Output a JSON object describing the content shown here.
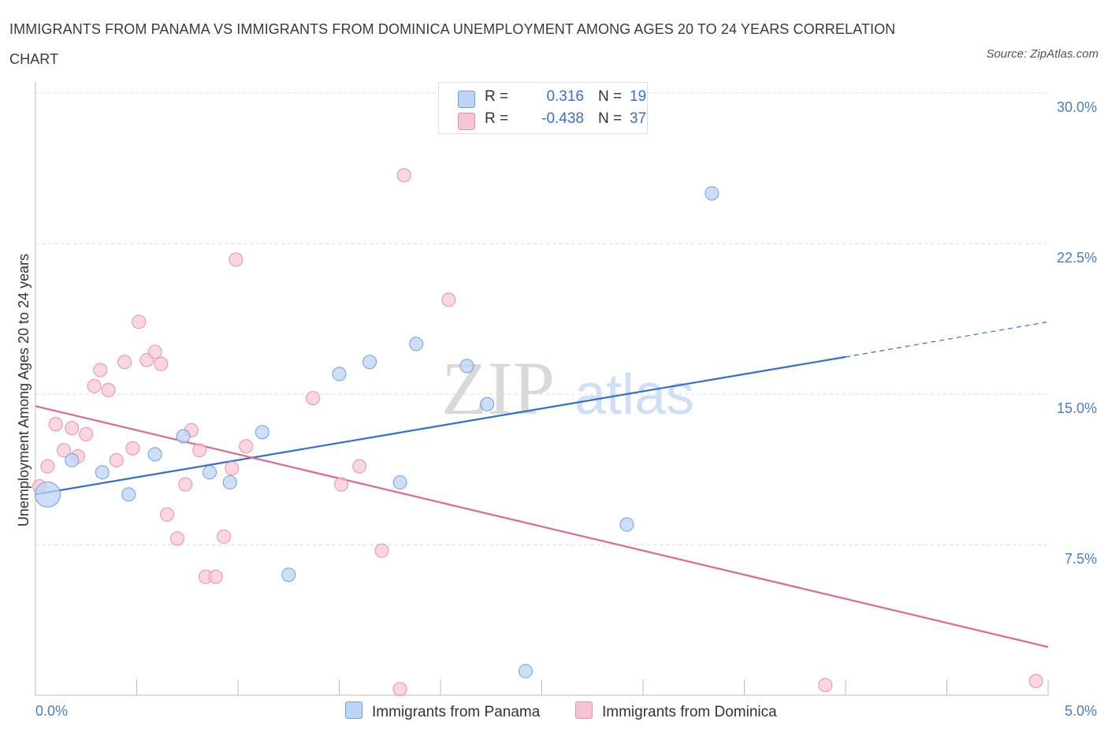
{
  "title": "IMMIGRANTS FROM PANAMA VS IMMIGRANTS FROM DOMINICA UNEMPLOYMENT AMONG AGES 20 TO 24 YEARS CORRELATION CHART",
  "source": "Source: ZipAtlas.com",
  "watermark": {
    "zip": "ZIP",
    "atlas": "atlas"
  },
  "colors": {
    "panama_fill": "#bcd4f5",
    "panama_stroke": "#6f9fd8",
    "panama_line": "#2f6fce",
    "dominica_fill": "#f8c4d3",
    "dominica_stroke": "#e890aa",
    "dominica_line": "#e0688e",
    "tick_label": "#4a7cc4",
    "grid": "#d8d8d8"
  },
  "legend": {
    "rows": [
      {
        "r_label": "R =",
        "r_value": "0.316",
        "n_label": "N =",
        "n_value": "19"
      },
      {
        "r_label": "R =",
        "r_value": "-0.438",
        "n_label": "N =",
        "n_value": "37"
      }
    ]
  },
  "bottom_legend": [
    {
      "label": "Immigrants from Panama"
    },
    {
      "label": "Immigrants from Dominica"
    }
  ],
  "chart_data": {
    "type": "scatter",
    "title": "IMMIGRANTS FROM PANAMA VS IMMIGRANTS FROM DOMINICA UNEMPLOYMENT AMONG AGES 20 TO 24 YEARS CORRELATION CHART",
    "xlabel": "",
    "ylabel": "Unemployment Among Ages 20 to 24 years",
    "xlim": [
      0,
      5
    ],
    "ylim": [
      0,
      30
    ],
    "x_tick_labels": [
      "0.0%",
      "5.0%"
    ],
    "y_ticks": [
      7.5,
      15.0,
      22.5,
      30.0
    ],
    "y_tick_labels": [
      "7.5%",
      "15.0%",
      "22.5%",
      "30.0%"
    ],
    "grid": true,
    "legend_position": "top-center",
    "series": [
      {
        "name": "Immigrants from Panama",
        "points": [
          {
            "x": 0.06,
            "y": 10.0,
            "size": "large"
          },
          {
            "x": 0.18,
            "y": 11.7
          },
          {
            "x": 0.33,
            "y": 11.1
          },
          {
            "x": 0.46,
            "y": 10.0
          },
          {
            "x": 0.59,
            "y": 12.0
          },
          {
            "x": 0.73,
            "y": 12.9
          },
          {
            "x": 0.86,
            "y": 11.1
          },
          {
            "x": 0.96,
            "y": 10.6
          },
          {
            "x": 1.12,
            "y": 13.1
          },
          {
            "x": 1.25,
            "y": 6.0
          },
          {
            "x": 1.5,
            "y": 16.0
          },
          {
            "x": 1.65,
            "y": 16.6
          },
          {
            "x": 1.88,
            "y": 17.5
          },
          {
            "x": 2.13,
            "y": 16.4
          },
          {
            "x": 2.23,
            "y": 14.5
          },
          {
            "x": 1.8,
            "y": 10.6
          },
          {
            "x": 2.42,
            "y": 1.2
          },
          {
            "x": 2.92,
            "y": 8.5
          },
          {
            "x": 3.34,
            "y": 25.0
          }
        ],
        "trend": {
          "x_start": 0.0,
          "y_start": 10.0,
          "x_end_solid": 4.0,
          "y_end_solid": 16.85,
          "x_end_dashed": 5.0,
          "y_end_dashed": 18.6
        }
      },
      {
        "name": "Immigrants from Dominica",
        "points": [
          {
            "x": 0.02,
            "y": 10.4
          },
          {
            "x": 0.06,
            "y": 11.4
          },
          {
            "x": 0.1,
            "y": 13.5
          },
          {
            "x": 0.14,
            "y": 12.2
          },
          {
            "x": 0.18,
            "y": 13.3
          },
          {
            "x": 0.21,
            "y": 11.9
          },
          {
            "x": 0.25,
            "y": 13.0
          },
          {
            "x": 0.29,
            "y": 15.4
          },
          {
            "x": 0.32,
            "y": 16.2
          },
          {
            "x": 0.36,
            "y": 15.2
          },
          {
            "x": 0.4,
            "y": 11.7
          },
          {
            "x": 0.44,
            "y": 16.6
          },
          {
            "x": 0.48,
            "y": 12.3
          },
          {
            "x": 0.51,
            "y": 18.6
          },
          {
            "x": 0.55,
            "y": 16.7
          },
          {
            "x": 0.59,
            "y": 17.1
          },
          {
            "x": 0.62,
            "y": 16.5
          },
          {
            "x": 0.65,
            "y": 9.0
          },
          {
            "x": 0.7,
            "y": 7.8
          },
          {
            "x": 0.74,
            "y": 10.5
          },
          {
            "x": 0.77,
            "y": 13.2
          },
          {
            "x": 0.81,
            "y": 12.2
          },
          {
            "x": 0.84,
            "y": 5.9
          },
          {
            "x": 0.89,
            "y": 5.9
          },
          {
            "x": 0.93,
            "y": 7.9
          },
          {
            "x": 0.97,
            "y": 11.3
          },
          {
            "x": 1.04,
            "y": 12.4
          },
          {
            "x": 0.99,
            "y": 21.7
          },
          {
            "x": 1.37,
            "y": 14.8
          },
          {
            "x": 1.51,
            "y": 10.5
          },
          {
            "x": 1.6,
            "y": 11.4
          },
          {
            "x": 1.71,
            "y": 7.2
          },
          {
            "x": 1.8,
            "y": 0.3
          },
          {
            "x": 1.82,
            "y": 25.9
          },
          {
            "x": 2.04,
            "y": 19.7
          },
          {
            "x": 3.9,
            "y": 0.5
          },
          {
            "x": 4.94,
            "y": 0.7
          }
        ],
        "trend": {
          "x_start": 0.0,
          "y_start": 14.4,
          "x_end": 5.0,
          "y_end": 2.4
        }
      }
    ]
  }
}
